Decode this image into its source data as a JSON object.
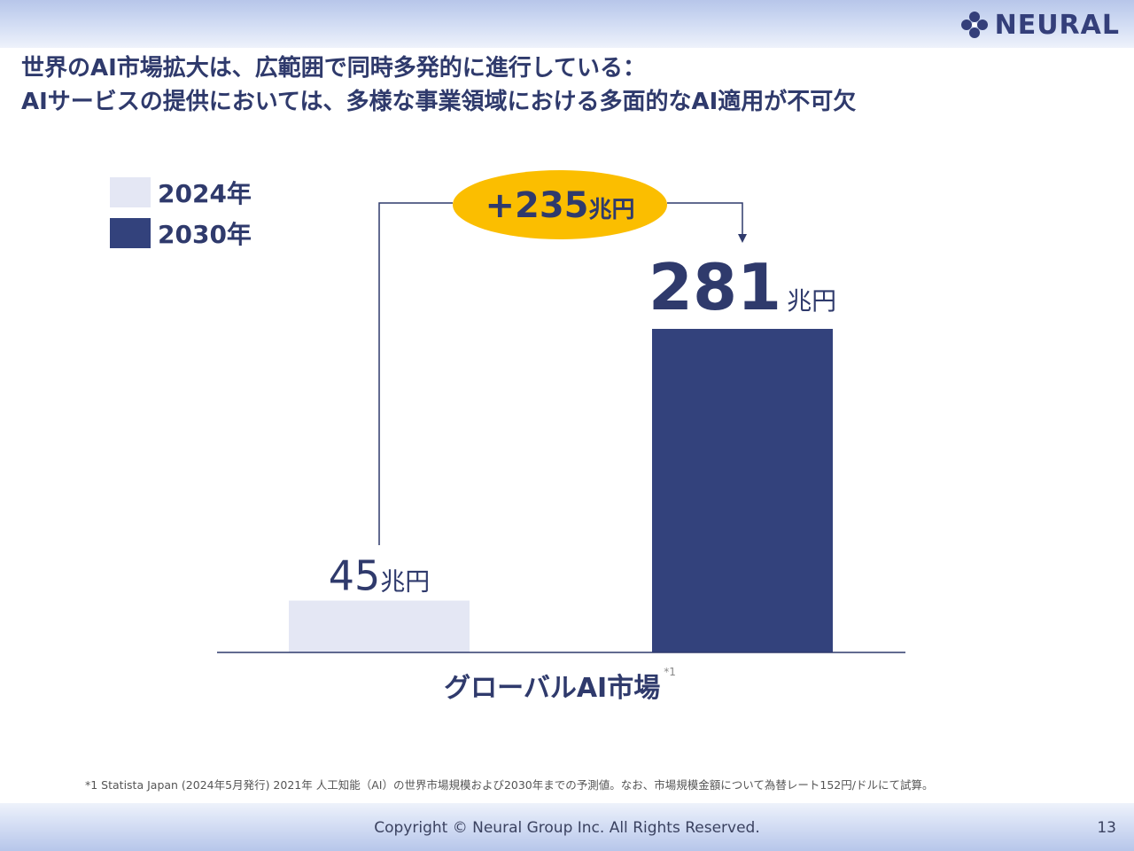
{
  "header": {
    "logo_text": "NEURAL",
    "title_line1": "世界のAI市場拡大は、広範囲で同時多発的に進行している：",
    "title_line2": "AIサービスの提供においては、多様な事業領域における多面的なAI適用が不可欠"
  },
  "colors": {
    "bar_2024": "#e4e7f4",
    "bar_2030": "#33427c",
    "accent_ellipse": "#fbbe00",
    "text_navy": "#2f3a6c"
  },
  "chart_data": {
    "type": "bar",
    "categories": [
      "2024年",
      "2030年"
    ],
    "values": [
      45,
      281
    ],
    "unit": "兆円",
    "ylim": [
      0,
      281
    ],
    "grid": false,
    "legend": {
      "placement": "top-left",
      "entries": [
        {
          "label": "2024年",
          "color": "#e4e7f4"
        },
        {
          "label": "2030年",
          "color": "#33427c"
        }
      ]
    },
    "xlabel": "グローバルAI市場",
    "xlabel_note": "*1",
    "annotation": {
      "text": "+235",
      "unit": "兆円",
      "delta": 235
    },
    "data_labels": [
      "45",
      "281"
    ]
  },
  "footnote": "*1 Statista Japan (2024年5月発行) 2021年 人工知能（AI）の世界市場規模および2030年までの予測値。なお、市場規模金額について為替レート152円/ドルにて試算。",
  "footer": {
    "copyright": "Copyright © Neural Group Inc. All Rights Reserved.",
    "page_number": "13"
  }
}
